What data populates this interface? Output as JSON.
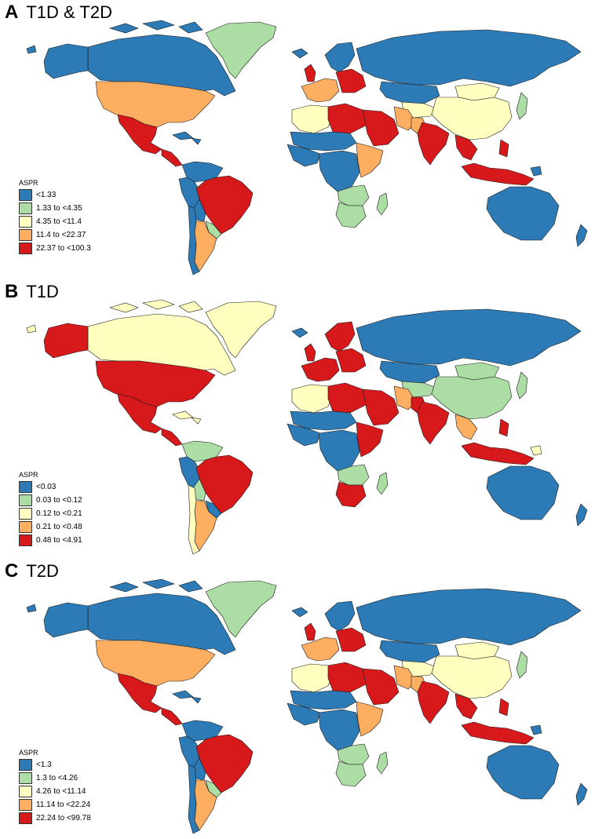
{
  "colors": {
    "blue": "#2c7bb6",
    "green": "#abdda4",
    "yellow": "#ffffbf",
    "orange": "#fdae61",
    "red": "#d7191c",
    "border": "#1a1a1a"
  },
  "panels": [
    {
      "letter": "A",
      "title": "T1D & T2D",
      "legend": {
        "title": "ASPR",
        "items": [
          "<1.33",
          "1.33 to <4.35",
          "4.35 to <11.4",
          "11.4 to <22.37",
          "22.37 to <100.3"
        ]
      },
      "regions": {
        "canada": "blue",
        "greenland": "green",
        "alaska": "blue",
        "usa": "orange",
        "mexico": "red",
        "central_america": "red",
        "colombia_venezuela": "blue",
        "peru_ecuador": "blue",
        "brazil": "red",
        "bolivia": "blue",
        "argentina": "orange",
        "chile": "blue",
        "paraguay": "green",
        "iceland": "blue",
        "uk": "red",
        "scandinavia": "blue",
        "western_europe": "orange",
        "eastern_europe": "red",
        "russia": "blue",
        "kazakhstan": "blue",
        "central_asia": "yellow",
        "middle_east": "red",
        "iran": "orange",
        "pakistan": "orange",
        "india": "red",
        "china": "yellow",
        "mongolia": "yellow",
        "japan": "green",
        "se_asia": "red",
        "indonesia": "red",
        "philippines": "red",
        "australia": "blue",
        "new_zealand": "blue",
        "north_africa_w": "yellow",
        "libya_egypt": "red",
        "sahel": "blue",
        "west_africa": "blue",
        "central_africa": "blue",
        "east_africa": "orange",
        "southern_africa": "green",
        "south_africa": "green",
        "madagascar": "green"
      }
    },
    {
      "letter": "B",
      "title": "T1D",
      "legend": {
        "title": "ASPR",
        "items": [
          "<0.03",
          "0.03 to <0.12",
          "0.12 to <0.21",
          "0.21 to <0.48",
          "0.48 to <4.91"
        ]
      },
      "regions": {
        "canada": "yellow",
        "greenland": "yellow",
        "alaska": "red",
        "usa": "red",
        "mexico": "red",
        "central_america": "red",
        "colombia_venezuela": "green",
        "peru_ecuador": "blue",
        "brazil": "red",
        "bolivia": "green",
        "argentina": "orange",
        "chile": "yellow",
        "paraguay": "blue",
        "iceland": "blue",
        "uk": "red",
        "scandinavia": "red",
        "western_europe": "red",
        "eastern_europe": "red",
        "russia": "blue",
        "kazakhstan": "blue",
        "central_asia": "green",
        "middle_east": "red",
        "iran": "orange",
        "pakistan": "red",
        "india": "red",
        "china": "green",
        "mongolia": "green",
        "japan": "green",
        "se_asia": "orange",
        "indonesia": "red",
        "philippines": "red",
        "australia": "blue",
        "new_zealand": "blue",
        "north_africa_w": "yellow",
        "libya_egypt": "red",
        "sahel": "blue",
        "west_africa": "blue",
        "central_africa": "blue",
        "east_africa": "red",
        "southern_africa": "green",
        "south_africa": "red",
        "madagascar": "green"
      }
    },
    {
      "letter": "C",
      "title": "T2D",
      "legend": {
        "title": "ASPR",
        "items": [
          "<1.3",
          "1.3 to <4.26",
          "4.26 to <11.14",
          "11.14 to <22.24",
          "22.24 to <99.78"
        ]
      },
      "regions": {
        "canada": "blue",
        "greenland": "green",
        "alaska": "blue",
        "usa": "orange",
        "mexico": "red",
        "central_america": "red",
        "colombia_venezuela": "blue",
        "peru_ecuador": "blue",
        "brazil": "red",
        "bolivia": "blue",
        "argentina": "orange",
        "chile": "blue",
        "paraguay": "green",
        "iceland": "blue",
        "uk": "red",
        "scandinavia": "blue",
        "western_europe": "orange",
        "eastern_europe": "red",
        "russia": "blue",
        "kazakhstan": "blue",
        "central_asia": "yellow",
        "middle_east": "red",
        "iran": "orange",
        "pakistan": "orange",
        "india": "red",
        "china": "yellow",
        "mongolia": "yellow",
        "japan": "green",
        "se_asia": "red",
        "indonesia": "red",
        "philippines": "red",
        "australia": "blue",
        "new_zealand": "blue",
        "north_africa_w": "yellow",
        "libya_egypt": "red",
        "sahel": "blue",
        "west_africa": "blue",
        "central_africa": "blue",
        "east_africa": "orange",
        "southern_africa": "green",
        "south_africa": "green",
        "madagascar": "green"
      }
    }
  ]
}
